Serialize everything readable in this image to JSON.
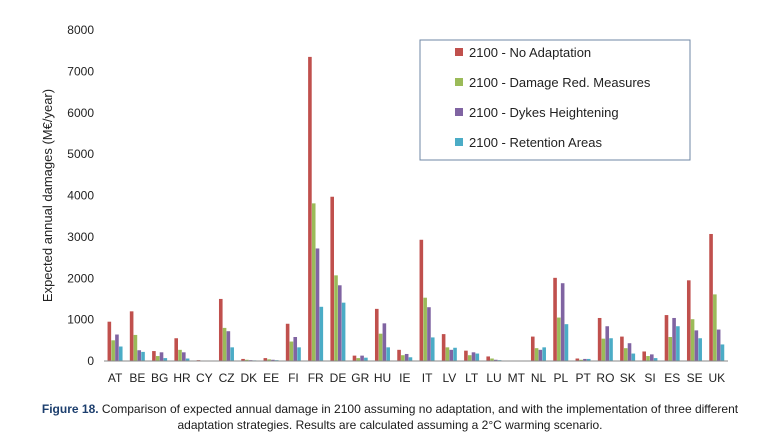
{
  "chart_data": {
    "type": "bar",
    "title": "",
    "xlabel": "",
    "ylabel": "Expected annual damages (M€/year)",
    "ylim": [
      0,
      8000
    ],
    "yticks": [
      0,
      1000,
      2000,
      3000,
      4000,
      5000,
      6000,
      7000,
      8000
    ],
    "grid": false,
    "legend_position": "top-right",
    "categories": [
      "AT",
      "BE",
      "BG",
      "HR",
      "CY",
      "CZ",
      "DK",
      "EE",
      "FI",
      "FR",
      "DE",
      "GR",
      "HU",
      "IE",
      "IT",
      "LV",
      "LT",
      "LU",
      "MT",
      "NL",
      "PL",
      "PT",
      "RO",
      "SK",
      "SI",
      "ES",
      "SE",
      "UK"
    ],
    "series": [
      {
        "name": "2100 - No Adaptation",
        "color": "#c0504d",
        "values": [
          950,
          1200,
          240,
          550,
          20,
          1500,
          50,
          70,
          900,
          7350,
          3970,
          130,
          1260,
          270,
          2930,
          650,
          250,
          110,
          0,
          590,
          2010,
          60,
          1040,
          590,
          230,
          1110,
          1950,
          3070
        ]
      },
      {
        "name": "2100 - Damage Red. Measures",
        "color": "#9bbb59",
        "values": [
          500,
          630,
          120,
          270,
          10,
          800,
          30,
          40,
          470,
          3810,
          2070,
          70,
          660,
          140,
          1530,
          330,
          140,
          60,
          0,
          310,
          1050,
          30,
          540,
          310,
          120,
          580,
          1010,
          1610
        ]
      },
      {
        "name": "2100 - Dykes Heightening",
        "color": "#8064a2",
        "values": [
          640,
          260,
          210,
          210,
          5,
          720,
          20,
          30,
          580,
          2720,
          1830,
          130,
          910,
          170,
          1300,
          270,
          210,
          30,
          0,
          270,
          1880,
          50,
          840,
          430,
          160,
          1040,
          740,
          760
        ]
      },
      {
        "name": "2100 - Retention Areas",
        "color": "#4bacc6",
        "values": [
          350,
          220,
          70,
          60,
          5,
          330,
          15,
          20,
          330,
          1310,
          1410,
          80,
          330,
          90,
          570,
          320,
          180,
          20,
          0,
          330,
          890,
          50,
          550,
          180,
          70,
          840,
          550,
          400
        ]
      }
    ]
  },
  "caption": {
    "lead": "Figure 18.",
    "text": " Comparison of expected annual damage in 2100 assuming no adaptation, and with the implementation of three different adaptation strategies. Results are calculated assuming a 2°C warming scenario."
  }
}
